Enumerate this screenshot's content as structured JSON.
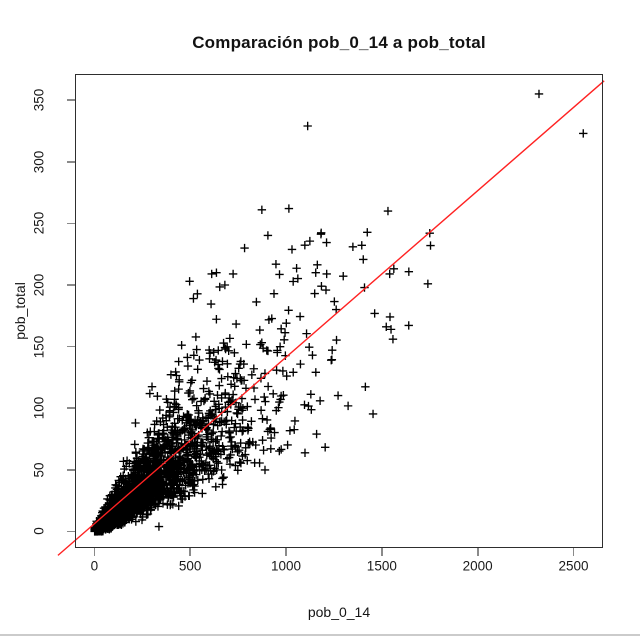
{
  "chart": {
    "title": "Comparación pob_0_14 a pob_total",
    "xlabel": "pob_0_14",
    "ylabel": "pob_total"
  },
  "chart_data": {
    "type": "scatter",
    "title": "Comparación pob_0_14 a pob_total",
    "xlabel": "pob_0_14",
    "ylabel": "pob_total",
    "xlim": [
      -101,
      2654
    ],
    "ylim": [
      -13.4,
      371.2
    ],
    "x_ticks": [
      0,
      500,
      1000,
      1500,
      2000,
      2500
    ],
    "y_ticks": [
      0,
      50,
      100,
      150,
      200,
      250,
      300,
      350
    ],
    "grid": false,
    "legend": false,
    "marker": "+",
    "marker_color": "#000000",
    "n_points_approx": 2800,
    "fit_line": {
      "slope": 0.1351,
      "intercept": 6.3,
      "color": "#ff2222",
      "x_start": -190,
      "x_end": 2660
    },
    "notable_points": [
      [
        2320,
        355
      ],
      [
        2551,
        323
      ],
      [
        1113,
        329
      ],
      [
        874,
        261
      ],
      [
        1015,
        262
      ],
      [
        1532,
        260
      ],
      [
        1349,
        231
      ],
      [
        1750,
        242
      ],
      [
        1754,
        232
      ],
      [
        1541,
        209
      ],
      [
        1548,
        164
      ],
      [
        1558,
        156
      ],
      [
        497,
        203
      ],
      [
        517,
        189
      ],
      [
        637,
        210
      ],
      [
        724,
        209
      ],
      [
        681,
        200
      ],
      [
        337,
        4
      ]
    ],
    "bulk_generator": {
      "seed": 42,
      "n": 2800,
      "x_min": 1,
      "x_max": 1780,
      "x_exp_scale": 260,
      "ratio_median": 0.132,
      "ratio_log_sd": 0.38,
      "ratio_min": 0.02,
      "ratio_max": 0.42,
      "y_noise_sd": 1.5,
      "y_cap": 248
    }
  },
  "window": {
    "bottom_border_color": "#cbcbcb"
  }
}
